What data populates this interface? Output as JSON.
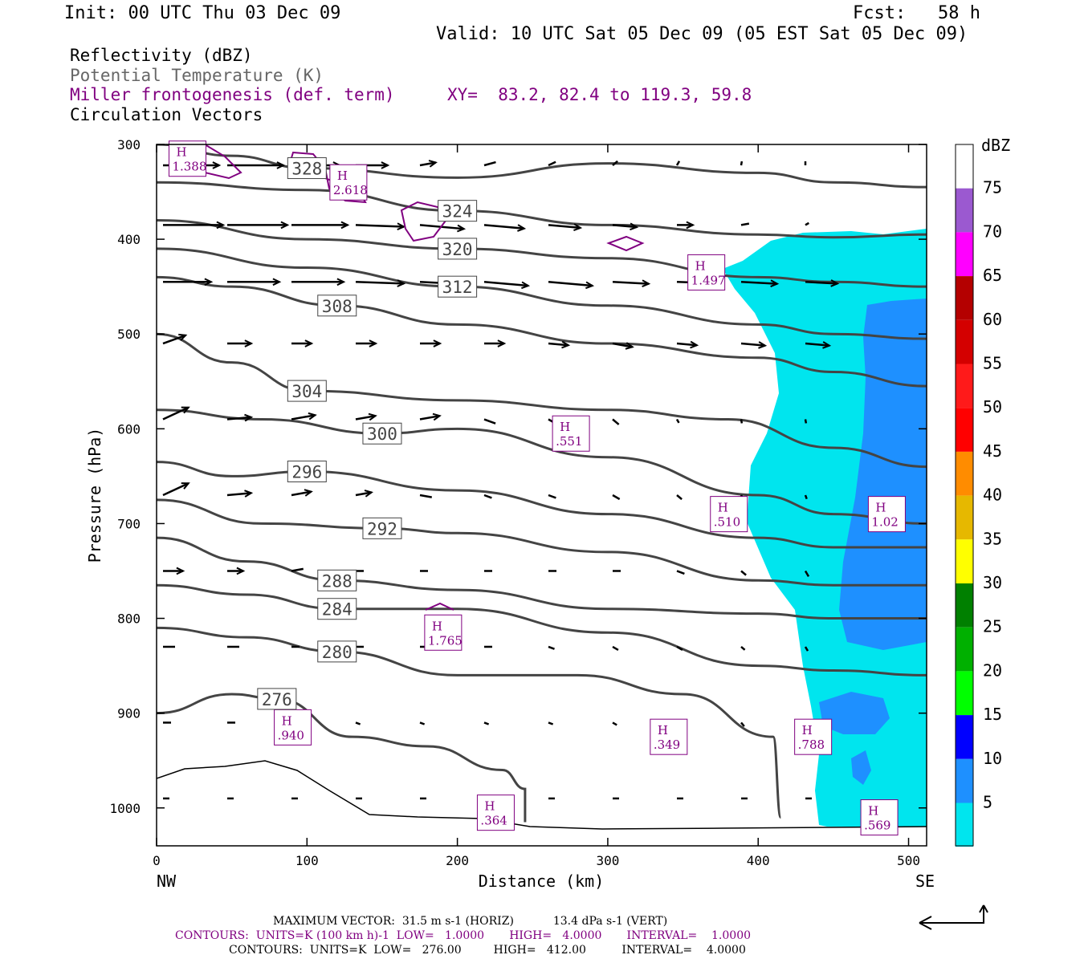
{
  "header": {
    "init": "Init: 00 UTC Thu 03 Dec 09",
    "fcst": "Fcst:   58 h",
    "valid": "Valid: 10 UTC Sat 05 Dec 09 (05 EST Sat 05 Dec 09)"
  },
  "legend": {
    "reflectivity": "Reflectivity (dBZ)",
    "theta": "Potential Temperature (K)",
    "miller": "Miller frontogenesis (def. term)",
    "xy": "XY=  83.2, 82.4 to 119.3, 59.8",
    "vectors": "Circulation Vectors"
  },
  "colors": {
    "theta_contour": "#444444",
    "miller_contour": "#800080",
    "refl_5": "#00e5ee",
    "refl_10": "#1e90ff"
  },
  "chart_data": {
    "type": "cross-section",
    "xlabel": "Distance (km)",
    "ylabel": "Pressure (hPa)",
    "xlim": [
      0,
      512
    ],
    "ylim": [
      1040,
      300
    ],
    "x_ticks": [
      0,
      100,
      200,
      300,
      400,
      500
    ],
    "y_ticks": [
      300,
      400,
      500,
      600,
      700,
      800,
      900,
      1000
    ],
    "x_end_labels": {
      "left": "NW",
      "right": "SE"
    },
    "colorbar": {
      "unit": "dBZ",
      "levels": [
        {
          "label": "75",
          "color": "#9b59d0"
        },
        {
          "label": "70",
          "color": "#ff00ff"
        },
        {
          "label": "65",
          "color": "#b40000"
        },
        {
          "label": "60",
          "color": "#d40000"
        },
        {
          "label": "55",
          "color": "#ff1a1a"
        },
        {
          "label": "50",
          "color": "#ff0000"
        },
        {
          "label": "45",
          "color": "#ff8c00"
        },
        {
          "label": "40",
          "color": "#e6b800"
        },
        {
          "label": "35",
          "color": "#ffff00"
        },
        {
          "label": "30",
          "color": "#008000"
        },
        {
          "label": "25",
          "color": "#00b000"
        },
        {
          "label": "20",
          "color": "#00ff00"
        },
        {
          "label": "15",
          "color": "#0000ff"
        },
        {
          "label": "10",
          "color": "#1e90ff"
        },
        {
          "label": "5",
          "color": "#00e5ee"
        }
      ]
    },
    "theta_contours": [
      {
        "label": "328",
        "x": [
          0,
          50,
          100,
          200,
          300,
          400,
          450,
          512
        ],
        "p": [
          300,
          312,
          325,
          335,
          320,
          330,
          340,
          345
        ]
      },
      {
        "label": "324",
        "x": [
          0,
          100,
          200,
          300,
          400,
          450,
          512
        ],
        "p": [
          340,
          348,
          370,
          385,
          395,
          398,
          395
        ]
      },
      {
        "label": "320",
        "x": [
          0,
          100,
          200,
          300,
          400,
          450,
          512
        ],
        "p": [
          380,
          400,
          410,
          420,
          440,
          445,
          450
        ]
      },
      {
        "label": "312",
        "x": [
          0,
          100,
          200,
          300,
          400,
          450,
          512
        ],
        "p": [
          410,
          430,
          450,
          470,
          490,
          500,
          505
        ]
      },
      {
        "label": "308",
        "x": [
          0,
          50,
          120,
          200,
          300,
          400,
          450,
          512
        ],
        "p": [
          440,
          450,
          470,
          490,
          510,
          525,
          540,
          555
        ]
      },
      {
        "label": "304",
        "x": [
          0,
          50,
          100,
          200,
          300,
          380,
          450,
          512
        ],
        "p": [
          500,
          530,
          560,
          570,
          580,
          590,
          620,
          640
        ]
      },
      {
        "label": "300",
        "x": [
          0,
          70,
          150,
          200,
          300,
          400,
          450,
          512
        ],
        "p": [
          580,
          590,
          605,
          600,
          630,
          670,
          690,
          700
        ]
      },
      {
        "label": "296",
        "x": [
          0,
          50,
          100,
          200,
          300,
          400,
          450,
          512
        ],
        "p": [
          635,
          650,
          645,
          665,
          690,
          715,
          725,
          725
        ]
      },
      {
        "label": "292",
        "x": [
          0,
          70,
          150,
          200,
          300,
          400,
          450,
          512
        ],
        "p": [
          675,
          700,
          705,
          710,
          730,
          760,
          765,
          765
        ]
      },
      {
        "label": "288",
        "x": [
          0,
          60,
          120,
          200,
          300,
          400,
          450,
          512
        ],
        "p": [
          715,
          740,
          760,
          770,
          790,
          795,
          800,
          800
        ]
      },
      {
        "label": "284",
        "x": [
          0,
          60,
          120,
          200,
          300,
          400,
          450,
          512
        ],
        "p": [
          765,
          775,
          790,
          790,
          815,
          850,
          855,
          860
        ]
      },
      {
        "label": "280",
        "x": [
          0,
          60,
          120,
          200,
          280,
          350,
          410,
          415
        ],
        "p": [
          810,
          820,
          835,
          860,
          860,
          880,
          925,
          1010
        ]
      },
      {
        "label": "276",
        "x": [
          0,
          50,
          80,
          130,
          180,
          230,
          245,
          245
        ],
        "p": [
          900,
          880,
          885,
          925,
          935,
          960,
          980,
          1015
        ]
      }
    ],
    "miller_maxima": [
      {
        "label": "H",
        "value": "1.388",
        "x": 20,
        "p": 315
      },
      {
        "label": "H",
        "value": "2.618",
        "x": 127,
        "p": 340
      },
      {
        "label": "H",
        "value": "1.497",
        "x": 365,
        "p": 435
      },
      {
        "label": "H",
        "value": ".551",
        "x": 275,
        "p": 605
      },
      {
        "label": "H",
        "value": ".510",
        "x": 380,
        "p": 690
      },
      {
        "label": "H",
        "value": "1.02",
        "x": 485,
        "p": 690
      },
      {
        "label": "H",
        "value": "1.765",
        "x": 190,
        "p": 815
      },
      {
        "label": "H",
        "value": ".940",
        "x": 90,
        "p": 915
      },
      {
        "label": "H",
        "value": ".349",
        "x": 340,
        "p": 925
      },
      {
        "label": "H",
        "value": ".788",
        "x": 436,
        "p": 925
      },
      {
        "label": "H",
        "value": ".364",
        "x": 225,
        "p": 1005
      },
      {
        "label": "H",
        "value": ".569",
        "x": 480,
        "p": 1010
      }
    ]
  },
  "footer": {
    "max_vector": "MAXIMUM VECTOR:  31.5 m s-1 (HORIZ)           13.4 dPa s-1 (VERT)",
    "contours1": "CONTOURS:  UNITS=K (100 km h)-1  LOW=   1.0000       HIGH=   4.0000       INTERVAL=    1.0000",
    "contours2": "CONTOURS:  UNITS=K  LOW=   276.00         HIGH=   412.00          INTERVAL=    4.0000"
  }
}
